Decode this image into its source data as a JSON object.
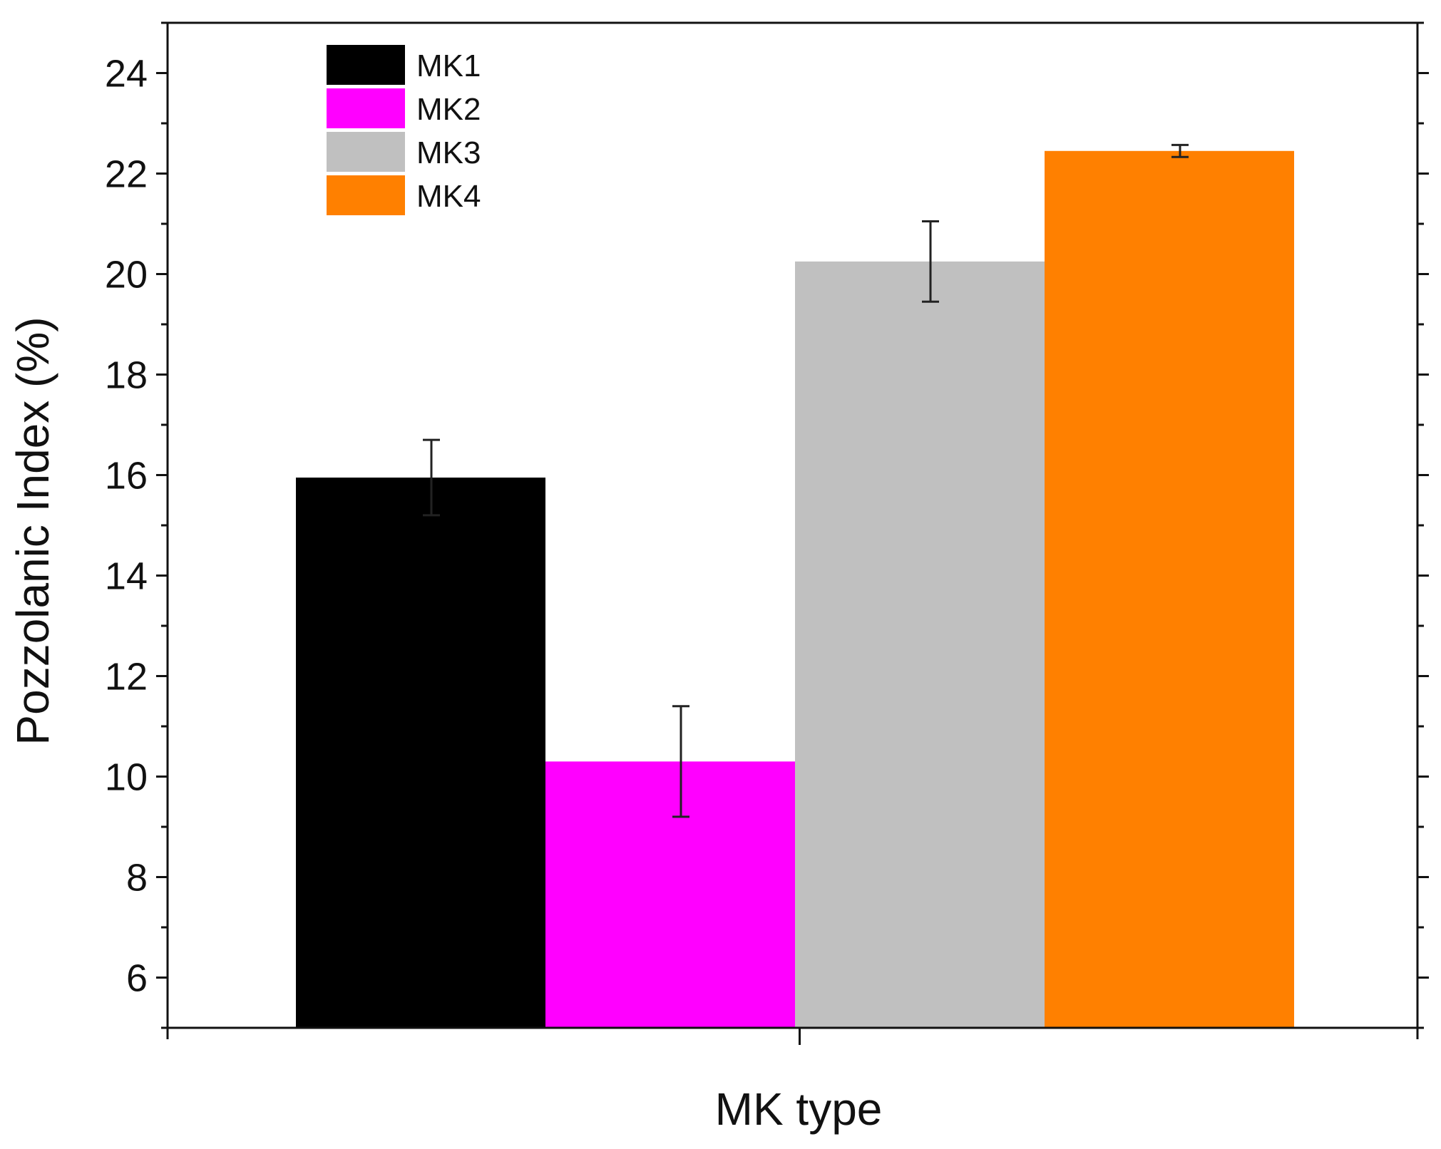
{
  "chart_data": {
    "type": "bar",
    "xlabel": "MK type",
    "ylabel": "Pozzolanic Index (%)",
    "ylim": [
      5,
      25
    ],
    "yticks": [
      6,
      8,
      10,
      12,
      14,
      16,
      18,
      20,
      22,
      24
    ],
    "grid": false,
    "legend_position": "top-left",
    "series": [
      {
        "name": "MK1",
        "value": 15.95,
        "error": 0.75,
        "color": "#000000"
      },
      {
        "name": "MK2",
        "value": 10.3,
        "error": 1.1,
        "color": "#ff00ff"
      },
      {
        "name": "MK3",
        "value": 20.25,
        "error": 0.8,
        "color": "#c0c0c0"
      },
      {
        "name": "MK4",
        "value": 22.45,
        "error": 0.12,
        "color": "#ff8000"
      }
    ]
  }
}
